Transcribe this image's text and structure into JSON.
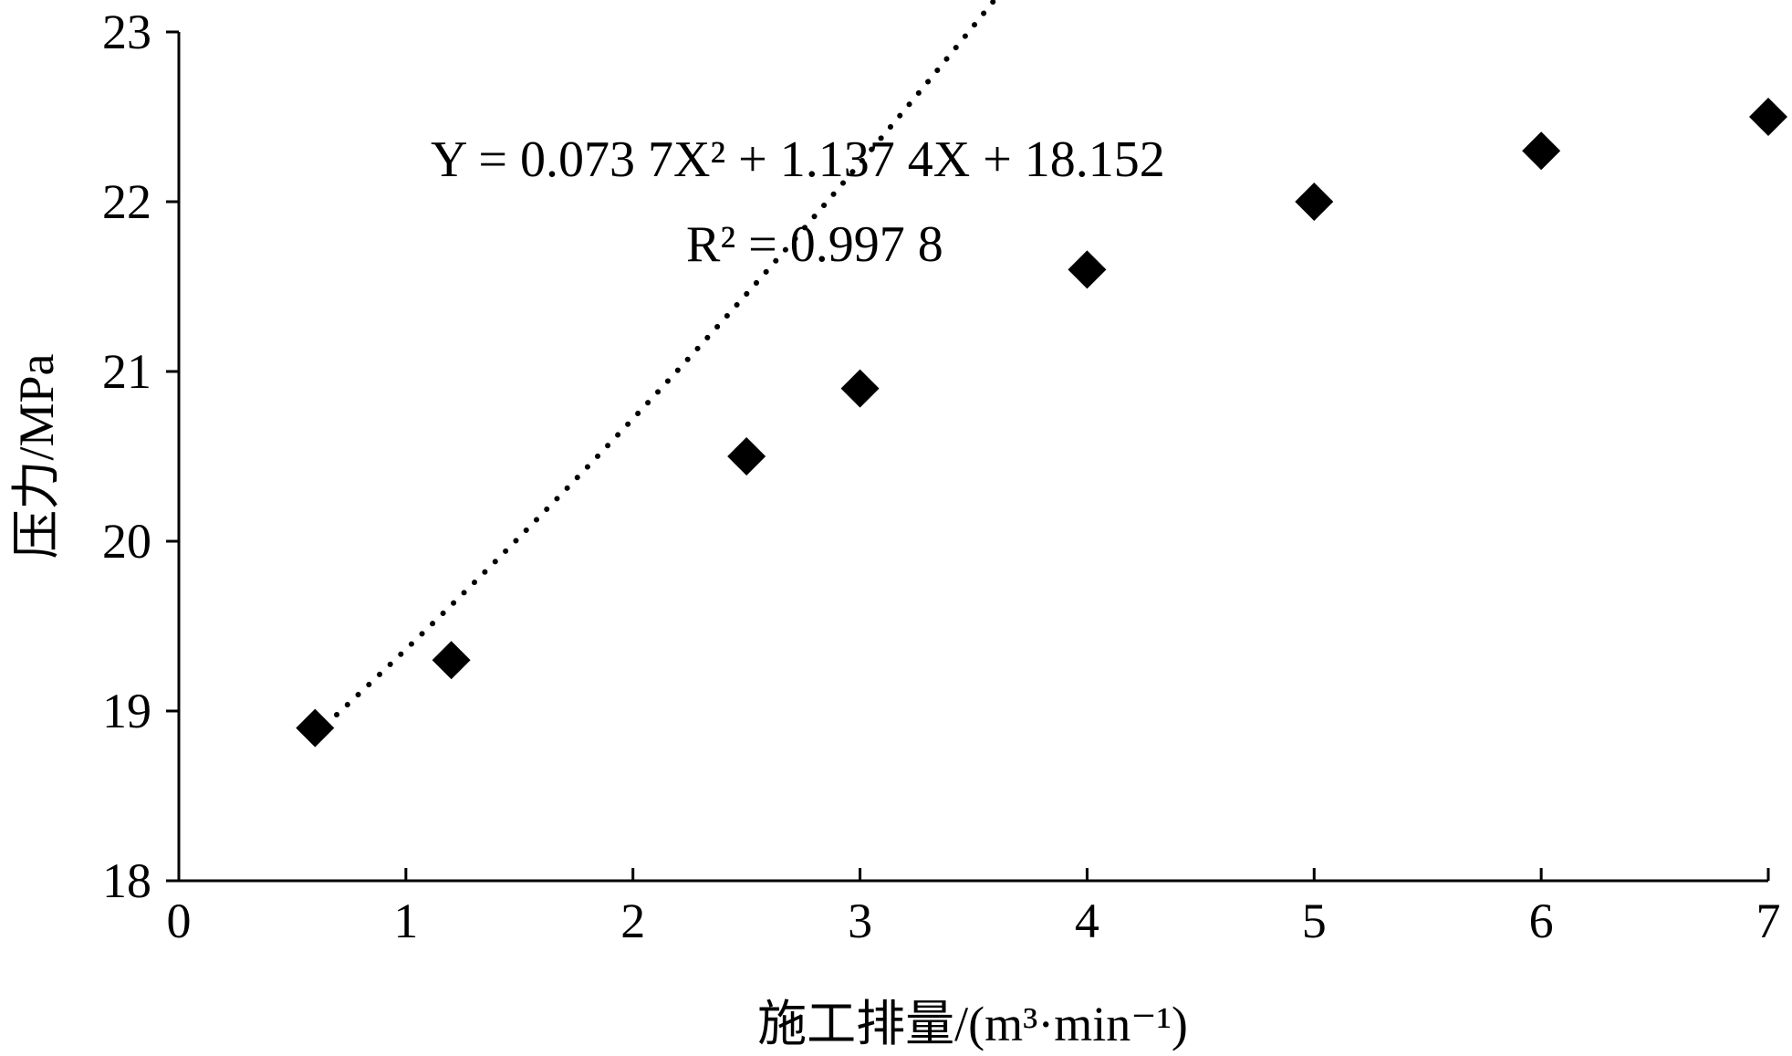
{
  "chart_data": {
    "type": "scatter",
    "title": "",
    "xlabel": "施工排量/(m³·min⁻¹)",
    "ylabel": "压力/MPa",
    "xlim": [
      0,
      7
    ],
    "ylim": [
      18,
      23
    ],
    "x_ticks": [
      "0",
      "1",
      "2",
      "3",
      "4",
      "5",
      "6",
      "7"
    ],
    "y_ticks": [
      "18",
      "19",
      "20",
      "21",
      "22",
      "23"
    ],
    "grid": false,
    "legend": "none",
    "series": [
      {
        "marker": "diamond",
        "color": "#000000",
        "x": [
          0.6,
          1.2,
          2.5,
          3.0,
          4.0,
          5.0,
          6.0,
          7.0
        ],
        "y": [
          18.9,
          19.3,
          20.5,
          20.9,
          21.6,
          22.0,
          22.3,
          22.5
        ]
      }
    ],
    "trendline": {
      "type": "polynomial",
      "order": 2,
      "style": "dotted",
      "coefficients": [
        0.0737,
        1.1374,
        18.152
      ],
      "equation": "Y = 0.073 7X² + 1.137 4X + 18.152",
      "r_squared": "R² = 0.997 8"
    }
  }
}
